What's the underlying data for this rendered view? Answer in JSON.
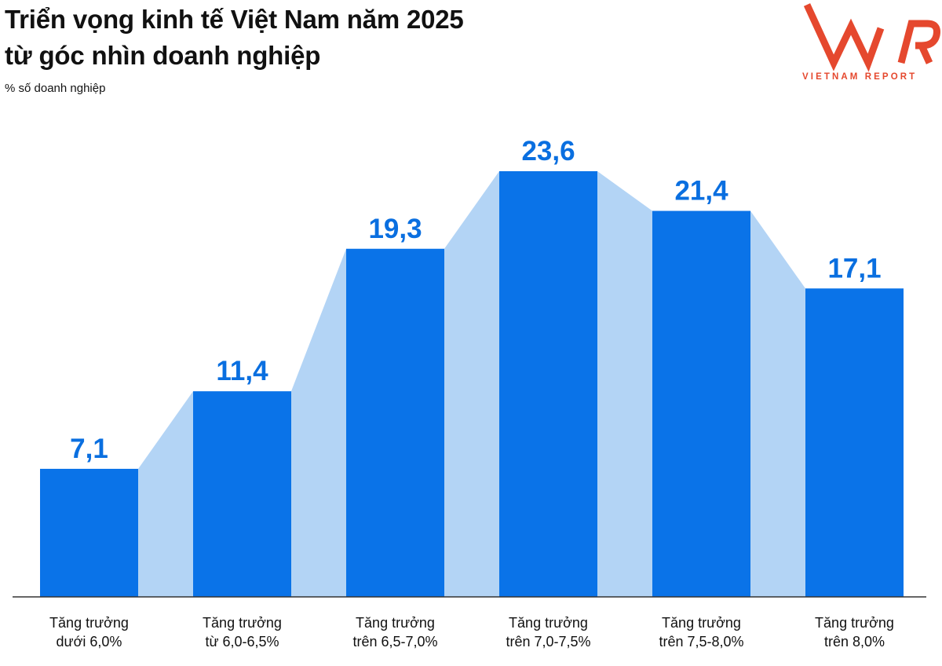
{
  "header": {
    "title_line1": "Triển vọng kinh tế Việt Nam năm 2025",
    "title_line2": "từ góc nhìn doanh nghiệp",
    "subtitle": "% số doanh nghiệp"
  },
  "logo": {
    "mark": "VNR",
    "text": "VIETNAM REPORT",
    "color": "#e5482e"
  },
  "colors": {
    "bar": "#0a73e8",
    "connector": "#b3d4f5",
    "value_label": "#0a6fe0",
    "axis": "#333333"
  },
  "chart_data": {
    "type": "bar",
    "title": "Triển vọng kinh tế Việt Nam năm 2025 từ góc nhìn doanh nghiệp",
    "ylabel": "% số doanh nghiệp",
    "xlabel": "",
    "categories": [
      [
        "Tăng trưởng",
        "dưới 6,0%"
      ],
      [
        "Tăng trưởng",
        "từ 6,0-6,5%"
      ],
      [
        "Tăng trưởng",
        "trên 6,5-7,0%"
      ],
      [
        "Tăng trưởng",
        "trên 7,0-7,5%"
      ],
      [
        "Tăng trưởng",
        "trên 7,5-8,0%"
      ],
      [
        "Tăng trưởng",
        "trên 8,0%"
      ]
    ],
    "values": [
      7.1,
      11.4,
      19.3,
      23.6,
      21.4,
      17.1
    ],
    "value_labels": [
      "7,1",
      "11,4",
      "19,3",
      "23,6",
      "21,4",
      "17,1"
    ],
    "ylim": [
      0,
      25
    ],
    "grid": false,
    "legend": "none"
  }
}
